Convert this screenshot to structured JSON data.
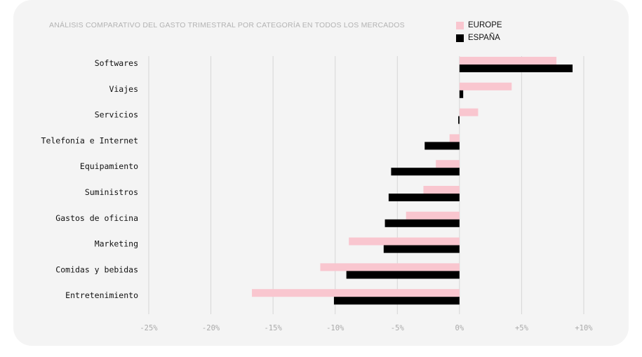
{
  "chart_data": {
    "type": "bar",
    "orientation": "horizontal",
    "title": "ANÁLISIS COMPARATIVO DEL GASTO TRIMESTRAL POR CATEGORÍA EN TODOS LOS MERCADOS",
    "categories": [
      "Softwares",
      "Viajes",
      "Servicios",
      "Telefonía e Internet",
      "Equipamiento",
      "Suministros",
      "Gastos de oficina",
      "Marketing",
      "Comidas y bebidas",
      "Entretenimiento"
    ],
    "series": [
      {
        "name": "EUROPE",
        "color": "#f9c6cf",
        "values": [
          7.8,
          4.2,
          1.5,
          -0.8,
          -1.9,
          -2.9,
          -4.3,
          -8.9,
          -11.2,
          -16.7
        ]
      },
      {
        "name": "ESPAÑA",
        "color": "#000000",
        "values": [
          9.1,
          0.3,
          -0.1,
          -2.8,
          -5.5,
          -5.7,
          -6.0,
          -6.1,
          -9.1,
          -10.1
        ]
      }
    ],
    "xlim": [
      -25,
      10
    ],
    "xticks": [
      -25,
      -20,
      -15,
      -10,
      -5,
      0,
      5,
      10
    ],
    "xtick_labels": [
      "-25%",
      "-20%",
      "-15%",
      "-10%",
      "-5%",
      "0%",
      "+5%",
      "+10%"
    ],
    "grid": true,
    "legend_position": "top-right"
  }
}
